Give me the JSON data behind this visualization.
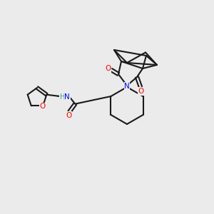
{
  "bg": "#ebebeb",
  "bond_color": "#1a1a1a",
  "n_color": "#0000ff",
  "o_color": "#ff0000",
  "h_color": "#3d9b9b",
  "lw": 1.5,
  "fs": 8.0,
  "figsize": [
    3.0,
    3.0
  ],
  "dpi": 100,
  "xlim": [
    0,
    300
  ],
  "ylim": [
    0,
    300
  ]
}
